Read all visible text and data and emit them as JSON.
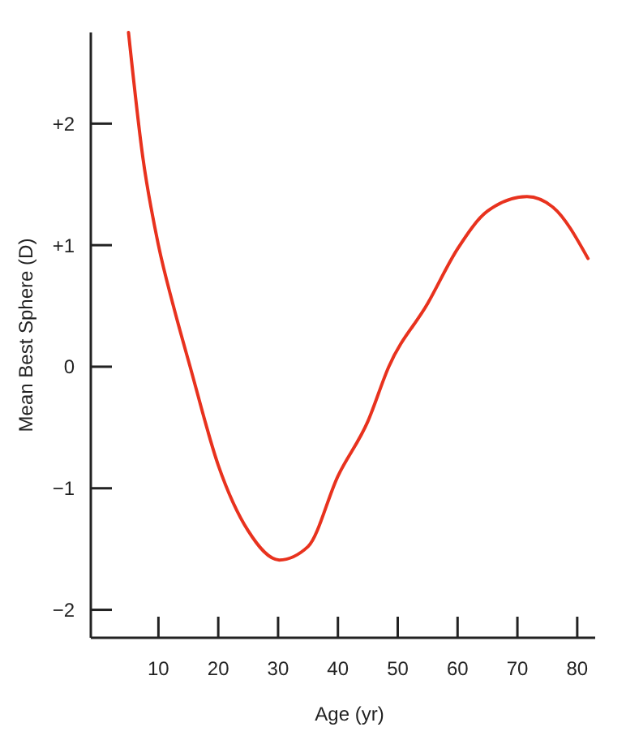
{
  "chart_data": {
    "type": "line",
    "xlabel": "Age (yr)",
    "ylabel": "Mean Best Sphere (D)",
    "xlim": [
      -1.3,
      83
    ],
    "ylim": [
      -2.23,
      2.75
    ],
    "xticks": [
      10,
      20,
      30,
      40,
      50,
      60,
      70,
      80
    ],
    "yticks": [
      {
        "value": 2,
        "label": "+2"
      },
      {
        "value": 1,
        "label": "+1"
      },
      0,
      {
        "value": -1,
        "label": "−1"
      },
      {
        "value": -2,
        "label": "−2"
      }
    ],
    "grid": false,
    "marker": "none",
    "line_style": "solid",
    "series": [
      {
        "color": "#e8321e",
        "x": [
          5,
          7.4,
          10,
          12.5,
          15.3,
          20,
          25,
          30.2,
          35,
          40,
          45,
          48.5,
          55,
          60,
          65,
          71.6,
          76,
          81.8
        ],
        "values": [
          2.75,
          1.72,
          1.0,
          0.5,
          0,
          -0.81,
          -1.35,
          -1.59,
          -1.48,
          -0.9,
          -0.45,
          0,
          0.52,
          0.97,
          1.28,
          1.4,
          1.31,
          0.89
        ]
      }
    ]
  }
}
